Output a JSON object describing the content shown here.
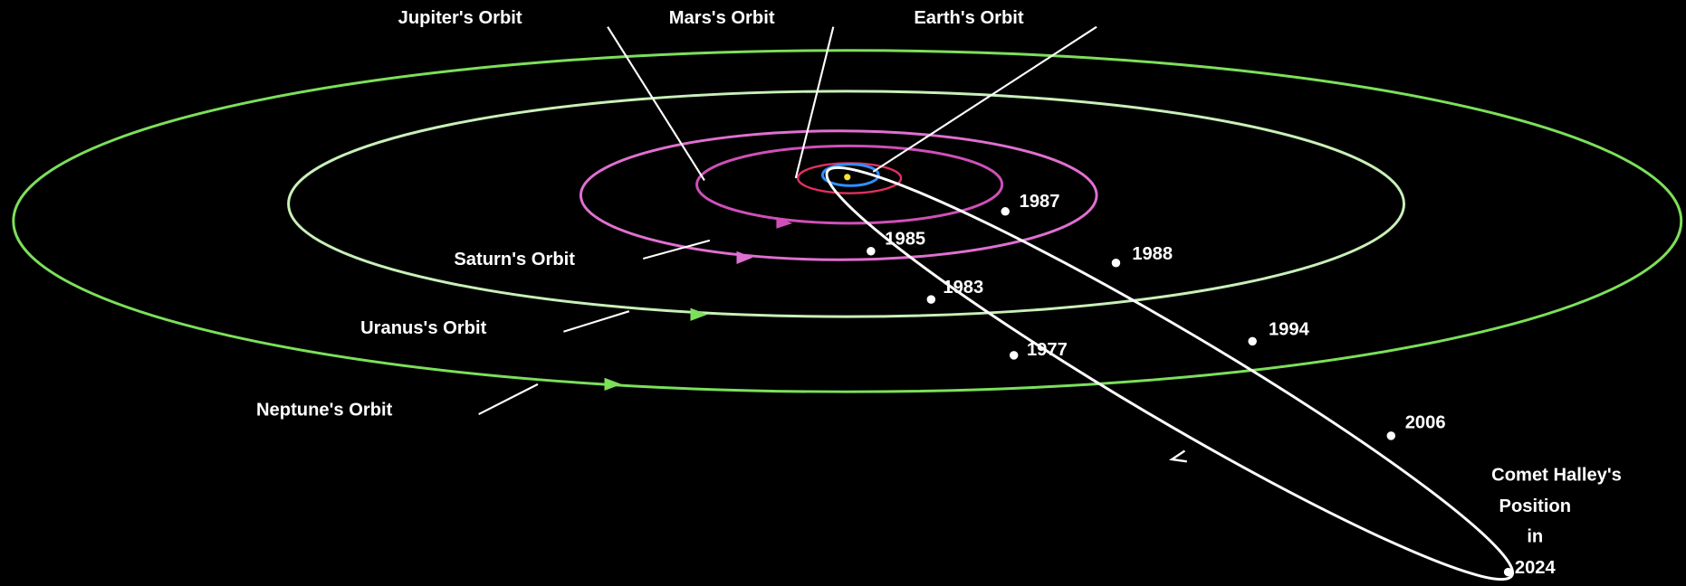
{
  "orbits": [
    {
      "label": "Jupiter's Orbit"
    },
    {
      "label": "Mars's Orbit"
    },
    {
      "label": "Earth's Orbit"
    },
    {
      "label": "Saturn's Orbit"
    },
    {
      "label": "Uranus's Orbit"
    },
    {
      "label": "Neptune's Orbit"
    }
  ],
  "years": [
    "1987",
    "1985",
    "1988",
    "1983",
    "1994",
    "1977",
    "2006"
  ],
  "comet_label": [
    "Comet Halley's",
    "Position",
    "in",
    "2024"
  ]
}
